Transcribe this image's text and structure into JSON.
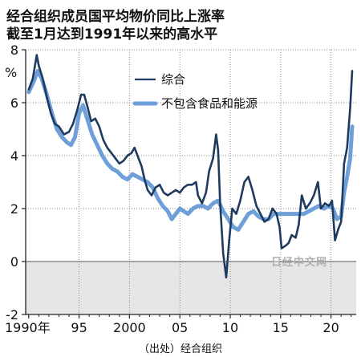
{
  "title": {
    "line1": "经合组织成员国平均物价同比上涨率",
    "line2": "截至1月达到1991年以来的高水平"
  },
  "source": "（出处）经合组织",
  "watermark": "日经中文网",
  "colors": {
    "headline": "#1f3a5f",
    "core": "#6f9fd8",
    "negative_fill": "#e6e6e6",
    "axis": "#222222"
  },
  "chart_data": {
    "type": "line",
    "title": "经合组织成员国平均物价同比上涨率",
    "subtitle": "截至1月达到1991年以来的高水平",
    "ylabel": "%",
    "xlim": [
      1989.7,
      2022.5
    ],
    "ylim": [
      -2,
      8
    ],
    "y_ticks": [
      -2,
      0,
      2,
      4,
      6,
      8
    ],
    "x_ticks": [
      {
        "value": 1990,
        "label": "1990年"
      },
      {
        "value": 1995,
        "label": "95"
      },
      {
        "value": 2000,
        "label": "2000"
      },
      {
        "value": 2005,
        "label": "05"
      },
      {
        "value": 2010,
        "label": "10"
      },
      {
        "value": 2015,
        "label": "15"
      },
      {
        "value": 2020,
        "label": "20"
      }
    ],
    "shaded_below_zero": true,
    "legend_position": "upper-right",
    "series": [
      {
        "name": "综合",
        "color": "#1f3a5f",
        "points": [
          [
            1990.0,
            6.5
          ],
          [
            1990.4,
            6.9
          ],
          [
            1990.8,
            7.8
          ],
          [
            1991.0,
            7.4
          ],
          [
            1991.4,
            6.9
          ],
          [
            1991.8,
            6.2
          ],
          [
            1992.2,
            5.6
          ],
          [
            1992.6,
            5.2
          ],
          [
            1993.0,
            5.1
          ],
          [
            1993.5,
            4.8
          ],
          [
            1994.0,
            4.9
          ],
          [
            1994.4,
            5.2
          ],
          [
            1994.8,
            5.7
          ],
          [
            1995.2,
            6.3
          ],
          [
            1995.5,
            6.3
          ],
          [
            1995.8,
            5.9
          ],
          [
            1996.2,
            5.3
          ],
          [
            1996.6,
            5.4
          ],
          [
            1997.0,
            5.1
          ],
          [
            1997.4,
            4.6
          ],
          [
            1997.8,
            4.3
          ],
          [
            1998.2,
            4.1
          ],
          [
            1998.6,
            3.9
          ],
          [
            1999.0,
            3.7
          ],
          [
            1999.4,
            3.8
          ],
          [
            1999.8,
            4.0
          ],
          [
            2000.2,
            4.1
          ],
          [
            2000.5,
            4.3
          ],
          [
            2000.8,
            4.0
          ],
          [
            2001.2,
            3.6
          ],
          [
            2001.5,
            3.1
          ],
          [
            2001.8,
            2.7
          ],
          [
            2002.2,
            2.5
          ],
          [
            2002.6,
            2.8
          ],
          [
            2003.0,
            2.9
          ],
          [
            2003.4,
            2.6
          ],
          [
            2003.8,
            2.5
          ],
          [
            2004.2,
            2.6
          ],
          [
            2004.6,
            2.7
          ],
          [
            2005.0,
            2.6
          ],
          [
            2005.4,
            2.8
          ],
          [
            2005.8,
            2.9
          ],
          [
            2006.2,
            2.9
          ],
          [
            2006.6,
            3.0
          ],
          [
            2006.8,
            2.5
          ],
          [
            2007.2,
            2.2
          ],
          [
            2007.6,
            2.6
          ],
          [
            2007.9,
            3.4
          ],
          [
            2008.3,
            3.9
          ],
          [
            2008.6,
            4.8
          ],
          [
            2008.8,
            4.2
          ],
          [
            2009.0,
            2.2
          ],
          [
            2009.3,
            0.3
          ],
          [
            2009.6,
            -0.6
          ],
          [
            2009.9,
            0.8
          ],
          [
            2010.2,
            2.0
          ],
          [
            2010.6,
            1.8
          ],
          [
            2011.0,
            2.3
          ],
          [
            2011.4,
            3.0
          ],
          [
            2011.8,
            3.2
          ],
          [
            2012.2,
            2.7
          ],
          [
            2012.6,
            2.1
          ],
          [
            2013.0,
            1.8
          ],
          [
            2013.4,
            1.5
          ],
          [
            2013.8,
            1.6
          ],
          [
            2014.2,
            2.0
          ],
          [
            2014.6,
            1.8
          ],
          [
            2014.9,
            1.3
          ],
          [
            2015.1,
            0.5
          ],
          [
            2015.5,
            0.6
          ],
          [
            2015.8,
            0.7
          ],
          [
            2016.1,
            1.0
          ],
          [
            2016.5,
            0.9
          ],
          [
            2016.8,
            1.4
          ],
          [
            2017.1,
            2.5
          ],
          [
            2017.5,
            2.0
          ],
          [
            2017.9,
            2.2
          ],
          [
            2018.3,
            2.5
          ],
          [
            2018.7,
            3.0
          ],
          [
            2019.0,
            2.0
          ],
          [
            2019.4,
            2.2
          ],
          [
            2019.8,
            2.1
          ],
          [
            2020.1,
            2.3
          ],
          [
            2020.4,
            0.8
          ],
          [
            2020.7,
            1.2
          ],
          [
            2021.0,
            1.5
          ],
          [
            2021.3,
            3.7
          ],
          [
            2021.6,
            4.3
          ],
          [
            2021.9,
            5.8
          ],
          [
            2022.1,
            7.2
          ]
        ]
      },
      {
        "name": "不包含食品和能源",
        "color": "#6f9fd8",
        "points": [
          [
            1990.0,
            6.4
          ],
          [
            1990.5,
            6.8
          ],
          [
            1990.9,
            7.2
          ],
          [
            1991.3,
            6.9
          ],
          [
            1991.8,
            6.3
          ],
          [
            1992.3,
            5.6
          ],
          [
            1992.8,
            5.0
          ],
          [
            1993.3,
            4.7
          ],
          [
            1993.8,
            4.5
          ],
          [
            1994.2,
            4.4
          ],
          [
            1994.6,
            4.7
          ],
          [
            1995.0,
            5.6
          ],
          [
            1995.4,
            5.9
          ],
          [
            1995.8,
            5.4
          ],
          [
            1996.3,
            4.8
          ],
          [
            1996.8,
            4.4
          ],
          [
            1997.3,
            4.0
          ],
          [
            1997.8,
            3.7
          ],
          [
            1998.3,
            3.5
          ],
          [
            1998.8,
            3.4
          ],
          [
            1999.3,
            3.2
          ],
          [
            1999.8,
            3.1
          ],
          [
            2000.3,
            3.3
          ],
          [
            2000.8,
            3.2
          ],
          [
            2001.3,
            3.1
          ],
          [
            2001.8,
            3.0
          ],
          [
            2002.3,
            2.8
          ],
          [
            2002.8,
            2.4
          ],
          [
            2003.3,
            2.1
          ],
          [
            2003.8,
            1.9
          ],
          [
            2004.2,
            1.6
          ],
          [
            2004.6,
            1.8
          ],
          [
            2005.0,
            2.0
          ],
          [
            2005.4,
            1.9
          ],
          [
            2005.8,
            1.8
          ],
          [
            2006.3,
            2.0
          ],
          [
            2006.8,
            2.1
          ],
          [
            2007.3,
            2.1
          ],
          [
            2007.8,
            2.0
          ],
          [
            2008.3,
            2.2
          ],
          [
            2008.8,
            2.3
          ],
          [
            2009.3,
            1.9
          ],
          [
            2009.8,
            1.6
          ],
          [
            2010.3,
            1.3
          ],
          [
            2010.8,
            1.2
          ],
          [
            2011.3,
            1.5
          ],
          [
            2011.8,
            1.8
          ],
          [
            2012.3,
            1.9
          ],
          [
            2012.8,
            1.7
          ],
          [
            2013.3,
            1.6
          ],
          [
            2013.8,
            1.6
          ],
          [
            2014.3,
            1.8
          ],
          [
            2014.8,
            1.8
          ],
          [
            2015.3,
            1.8
          ],
          [
            2015.8,
            1.8
          ],
          [
            2016.3,
            1.8
          ],
          [
            2016.8,
            1.8
          ],
          [
            2017.3,
            1.8
          ],
          [
            2017.8,
            1.9
          ],
          [
            2018.3,
            2.0
          ],
          [
            2018.8,
            2.1
          ],
          [
            2019.3,
            2.0
          ],
          [
            2019.8,
            2.1
          ],
          [
            2020.2,
            2.0
          ],
          [
            2020.6,
            1.6
          ],
          [
            2021.0,
            1.7
          ],
          [
            2021.3,
            2.6
          ],
          [
            2021.6,
            3.2
          ],
          [
            2021.9,
            3.9
          ],
          [
            2022.1,
            5.1
          ]
        ]
      }
    ]
  }
}
